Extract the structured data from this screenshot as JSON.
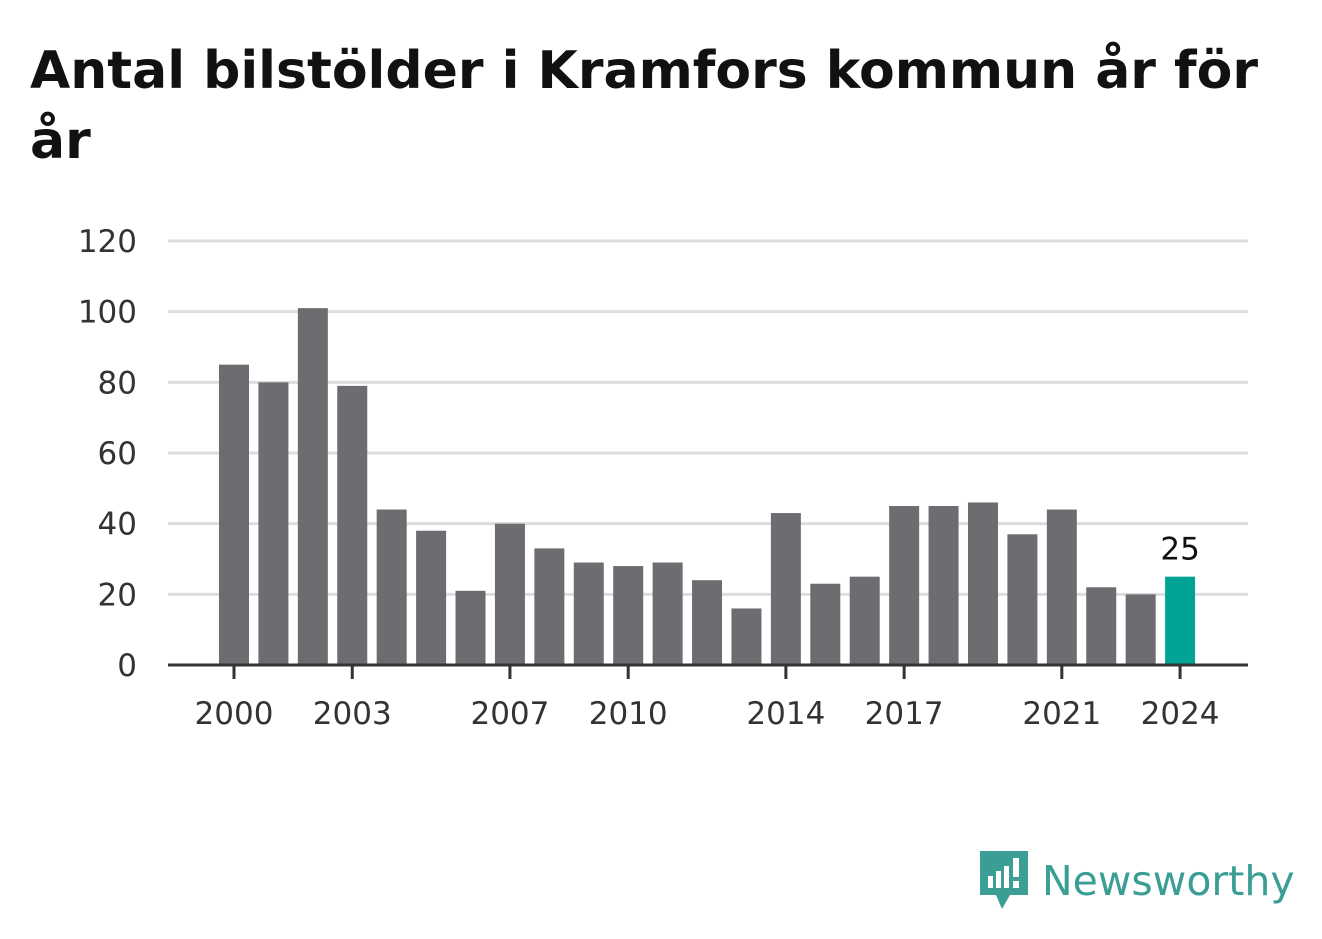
{
  "title": "Antal bilstölder i Kramfors kommun år för år",
  "brand": {
    "name": "Newsworthy",
    "icon": "newsworthy-logo-icon",
    "color": "#3a9e95"
  },
  "colors": {
    "bar": "#6d6c71",
    "highlight": "#00a396",
    "grid": "#dddddd",
    "axis": "#333333"
  },
  "chart_data": {
    "type": "bar",
    "x": [
      2000,
      2001,
      2002,
      2003,
      2004,
      2005,
      2006,
      2007,
      2008,
      2009,
      2010,
      2011,
      2012,
      2013,
      2014,
      2015,
      2016,
      2017,
      2018,
      2019,
      2020,
      2021,
      2022,
      2023,
      2024
    ],
    "values": [
      85,
      80,
      101,
      79,
      44,
      38,
      21,
      40,
      33,
      29,
      28,
      29,
      24,
      16,
      43,
      23,
      25,
      45,
      45,
      46,
      37,
      44,
      22,
      20,
      25
    ],
    "x_tick_labels": [
      "2000",
      "2003",
      "2007",
      "2010",
      "2014",
      "2017",
      "2021",
      "2024"
    ],
    "y_tick_labels": [
      "0",
      "20",
      "40",
      "60",
      "80",
      "100",
      "120"
    ],
    "ylim": [
      0,
      120
    ],
    "highlight": {
      "x": 2024,
      "label": "25"
    },
    "grid": true,
    "legend": "none"
  }
}
